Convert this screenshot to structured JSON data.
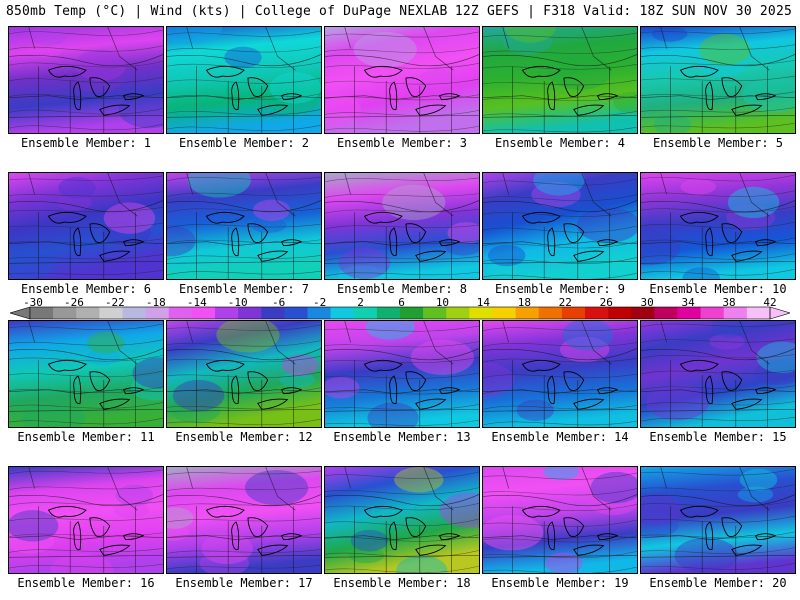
{
  "header": {
    "left": "850mb Temp (°C) | Wind (kts) | College of DuPage NEXLAB",
    "right": "12Z GEFS | F318 Valid: 18Z SUN NOV 30 2025"
  },
  "members": [
    {
      "label": "Ensemble Member: 1",
      "colors": [
        "#9b36e0",
        "#dd44f0",
        "#7030c8",
        "#3a3cc4",
        "#b040ec"
      ]
    },
    {
      "label": "Ensemble Member: 2",
      "colors": [
        "#1658d8",
        "#10d8d8",
        "#10c8b8",
        "#08b478",
        "#10a8e8"
      ]
    },
    {
      "label": "Ensemble Member: 3",
      "colors": [
        "#b8a0e4",
        "#dd48f0",
        "#f050f4",
        "#e040f0",
        "#c070ec"
      ]
    },
    {
      "label": "Ensemble Member: 4",
      "colors": [
        "#22a8a0",
        "#20a840",
        "#2cb030",
        "#58c020",
        "#10c0b0"
      ]
    },
    {
      "label": "Ensemble Member: 5",
      "colors": [
        "#1c44d0",
        "#10c8e0",
        "#18c8b0",
        "#20b080",
        "#5cc020"
      ]
    },
    {
      "label": "Ensemble Member: 6",
      "colors": [
        "#dd48f0",
        "#8034d8",
        "#3c36c4",
        "#2850d0",
        "#5034d0"
      ]
    },
    {
      "label": "Ensemble Member: 7",
      "colors": [
        "#c044ec",
        "#3a3cc4",
        "#1860d8",
        "#10c8d8",
        "#12d0b8"
      ]
    },
    {
      "label": "Ensemble Member: 8",
      "colors": [
        "#a8a8c8",
        "#dd48f0",
        "#8034d8",
        "#2850d0",
        "#10c8e0"
      ]
    },
    {
      "label": "Ensemble Member: 9",
      "colors": [
        "#b044ec",
        "#3a3cc4",
        "#1850d0",
        "#10b8e8",
        "#12d0d0"
      ]
    },
    {
      "label": "Ensemble Member: 10",
      "colors": [
        "#e044f0",
        "#9036d8",
        "#3a3cc4",
        "#1458d8",
        "#10c8e0"
      ]
    },
    {
      "label": "Ensemble Member: 11",
      "colors": [
        "#3a3cc4",
        "#10a8e8",
        "#10c8b8",
        "#20a860",
        "#38b038"
      ]
    },
    {
      "label": "Ensemble Member: 12",
      "colors": [
        "#c044ec",
        "#3a3cc4",
        "#12b8c0",
        "#20a858",
        "#78c018"
      ]
    },
    {
      "label": "Ensemble Member: 13",
      "colors": [
        "#e848f2",
        "#c044ec",
        "#3a3cc4",
        "#1878d8",
        "#10c8e0"
      ]
    },
    {
      "label": "Ensemble Member: 14",
      "colors": [
        "#e448f0",
        "#8034d8",
        "#3a3cc4",
        "#1870d8",
        "#10c0e0"
      ]
    },
    {
      "label": "Ensemble Member: 15",
      "colors": [
        "#9436e0",
        "#3a3cc4",
        "#7034d0",
        "#2c44c8",
        "#10c0d8"
      ]
    },
    {
      "label": "Ensemble Member: 16",
      "colors": [
        "#3a3cc4",
        "#dd44f0",
        "#f050f4",
        "#e040f0",
        "#b040ec"
      ]
    },
    {
      "label": "Ensemble Member: 17",
      "colors": [
        "#a8a8c8",
        "#dd48f0",
        "#f050f4",
        "#b040ec",
        "#3a3cc4"
      ]
    },
    {
      "label": "Ensemble Member: 18",
      "colors": [
        "#b040ec",
        "#2850d0",
        "#10b8c8",
        "#20a848",
        "#b8c820"
      ]
    },
    {
      "label": "Ensemble Member: 19",
      "colors": [
        "#dd48f0",
        "#f050f4",
        "#c044ec",
        "#3a3cc4",
        "#10b8e8"
      ]
    },
    {
      "label": "Ensemble Member: 20",
      "colors": [
        "#10a8e8",
        "#2850d0",
        "#3a3cc4",
        "#10c8e0",
        "#6034d0"
      ]
    }
  ],
  "colorbar": {
    "labels": [
      "-30",
      "-26",
      "-22",
      "-18",
      "-14",
      "-10",
      "-6",
      "-2",
      "2",
      "6",
      "10",
      "14",
      "18",
      "22",
      "26",
      "30",
      "34",
      "38",
      "42"
    ],
    "colors": [
      "#787878",
      "#989898",
      "#b0b0b0",
      "#d0d0d0",
      "#b8b8e0",
      "#d0a0e8",
      "#e060f0",
      "#f050f4",
      "#b040ec",
      "#8034d8",
      "#3a3cc4",
      "#2850d0",
      "#1888e0",
      "#10c8e0",
      "#10d0b0",
      "#10b070",
      "#20a030",
      "#60c020",
      "#a0d010",
      "#e0e000",
      "#f8d000",
      "#f8a000",
      "#f07000",
      "#e84000",
      "#d81010",
      "#c00000",
      "#a00010",
      "#c00060",
      "#e000a0",
      "#f040d0",
      "#f080f0",
      "#f8c0f8"
    ]
  }
}
